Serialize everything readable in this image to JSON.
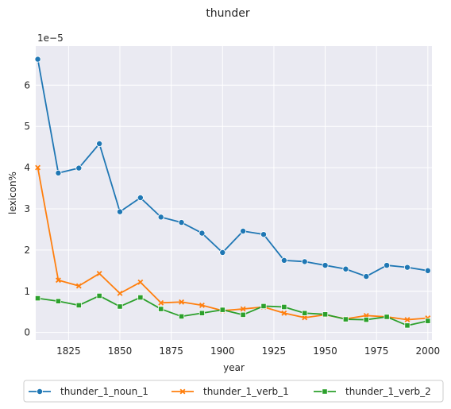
{
  "chart_data": {
    "type": "line",
    "title": "thunder",
    "xlabel": "year",
    "ylabel": "lexicon%",
    "y_scale_label": "1e−5",
    "xlim": [
      1809,
      2002
    ],
    "ylim": [
      -0.18,
      6.95
    ],
    "xticks": [
      1825,
      1850,
      1875,
      1900,
      1925,
      1950,
      1975,
      2000
    ],
    "yticks": [
      0,
      1,
      2,
      3,
      4,
      5,
      6
    ],
    "grid": true,
    "legend_position": "bottom-outside",
    "x": [
      1810,
      1820,
      1830,
      1840,
      1850,
      1860,
      1870,
      1880,
      1890,
      1900,
      1910,
      1920,
      1930,
      1940,
      1950,
      1960,
      1970,
      1980,
      1990,
      2000
    ],
    "series": [
      {
        "name": "thunder_1_noun_1",
        "color": "#1f77b4",
        "marker": "circle",
        "values": [
          6.63,
          3.87,
          3.99,
          4.58,
          2.93,
          3.27,
          2.8,
          2.67,
          2.41,
          1.94,
          2.46,
          2.38,
          1.75,
          1.72,
          1.63,
          1.54,
          1.36,
          1.63,
          1.58,
          1.5
        ]
      },
      {
        "name": "thunder_1_verb_1",
        "color": "#ff7f0e",
        "marker": "x",
        "values": [
          4.0,
          1.27,
          1.13,
          1.43,
          0.95,
          1.22,
          0.72,
          0.74,
          0.66,
          0.53,
          0.57,
          0.62,
          0.47,
          0.36,
          0.43,
          0.33,
          0.41,
          0.38,
          0.31,
          0.35
        ]
      },
      {
        "name": "thunder_1_verb_2",
        "color": "#2ca02c",
        "marker": "square",
        "values": [
          0.83,
          0.76,
          0.66,
          0.89,
          0.63,
          0.85,
          0.57,
          0.39,
          0.47,
          0.55,
          0.43,
          0.64,
          0.62,
          0.47,
          0.44,
          0.32,
          0.31,
          0.38,
          0.17,
          0.28
        ]
      }
    ]
  }
}
